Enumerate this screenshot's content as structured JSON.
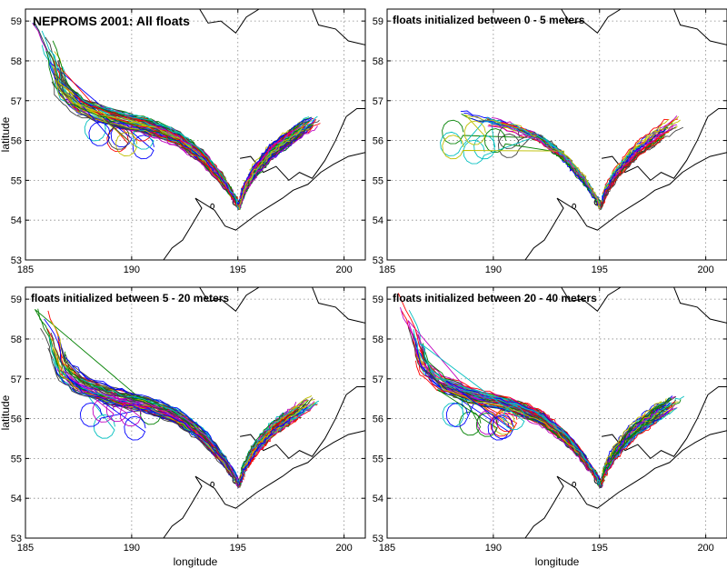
{
  "chart_data": [
    {
      "type": "line",
      "title": "NEPROMS 2001: All floats",
      "xlabel": "",
      "ylabel": "latitude",
      "xlim": [
        185,
        201
      ],
      "ylim": [
        53,
        59.3
      ],
      "xticks": [
        185,
        190,
        195,
        200
      ],
      "yticks": [
        53,
        54,
        55,
        56,
        57,
        58,
        59
      ],
      "grid": true,
      "n_tracks": 160
    },
    {
      "type": "line",
      "title": "floats initialized between  0 -  5 meters",
      "xlabel": "",
      "ylabel": "",
      "xlim": [
        185,
        201
      ],
      "ylim": [
        53,
        59.3
      ],
      "xticks": [
        185,
        190,
        195,
        200
      ],
      "yticks": [
        53,
        54,
        55,
        56,
        57,
        58,
        59
      ],
      "grid": true,
      "n_tracks": 70
    },
    {
      "type": "line",
      "title": "floats initialized between  5 - 20 meters",
      "xlabel": "longitude",
      "ylabel": "latitude",
      "xlim": [
        185,
        201
      ],
      "ylim": [
        53,
        59.3
      ],
      "xticks": [
        185,
        190,
        195,
        200
      ],
      "yticks": [
        53,
        54,
        55,
        56,
        57,
        58,
        59
      ],
      "grid": true,
      "n_tracks": 120
    },
    {
      "type": "line",
      "title": "floats initialized between 20 - 40 meters",
      "xlabel": "longitude",
      "ylabel": "",
      "xlim": [
        185,
        201
      ],
      "ylim": [
        53,
        59.3
      ],
      "xticks": [
        185,
        190,
        195,
        200
      ],
      "yticks": [
        53,
        54,
        55,
        56,
        57,
        58,
        59
      ],
      "grid": true,
      "n_tracks": 130
    }
  ],
  "colors": {
    "tracks": [
      "#0000ff",
      "#008000",
      "#ff0000",
      "#00bfbf",
      "#bf00bf",
      "#bfbf00",
      "#404040"
    ],
    "coast": "#000000",
    "grid": "#888888"
  }
}
